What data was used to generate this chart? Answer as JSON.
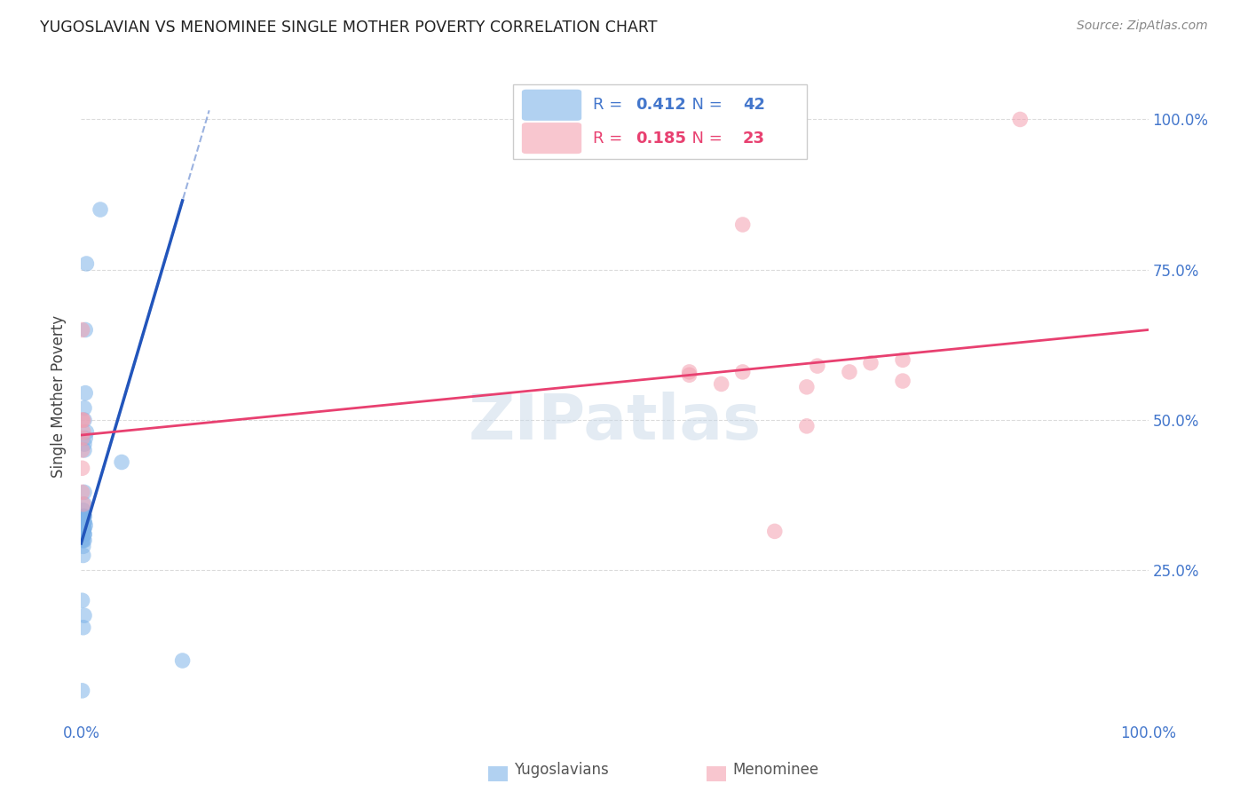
{
  "title": "YUGOSLAVIAN VS MENOMINEE SINGLE MOTHER POVERTY CORRELATION CHART",
  "source": "Source: ZipAtlas.com",
  "ylabel": "Single Mother Poverty",
  "legend_blue_r": "0.412",
  "legend_blue_n": "42",
  "legend_pink_r": "0.185",
  "legend_pink_n": "23",
  "blue_color": "#7EB3E8",
  "pink_color": "#F4A0B0",
  "blue_line_color": "#2255BB",
  "pink_line_color": "#E84070",
  "watermark_color": "#C8D8E8",
  "grid_color": "#CCCCCC",
  "tick_color": "#4477CC",
  "title_color": "#222222",
  "blue_points_x": [
    0.001,
    0.001,
    0.002,
    0.001,
    0.003,
    0.002,
    0.003,
    0.002,
    0.001,
    0.002,
    0.003,
    0.003,
    0.002,
    0.003,
    0.003,
    0.004,
    0.002,
    0.002,
    0.003,
    0.003,
    0.003,
    0.004,
    0.003,
    0.005,
    0.004,
    0.002,
    0.003,
    0.003,
    0.002,
    0.002,
    0.001,
    0.002,
    0.003,
    0.002,
    0.003,
    0.001,
    0.005,
    0.004,
    0.038,
    0.018,
    0.095,
    0.003
  ],
  "blue_points_y": [
    0.335,
    0.325,
    0.34,
    0.315,
    0.31,
    0.33,
    0.34,
    0.35,
    0.3,
    0.29,
    0.36,
    0.5,
    0.315,
    0.45,
    0.52,
    0.545,
    0.32,
    0.3,
    0.38,
    0.33,
    0.32,
    0.65,
    0.46,
    0.76,
    0.325,
    0.335,
    0.34,
    0.33,
    0.32,
    0.315,
    0.2,
    0.155,
    0.175,
    0.275,
    0.3,
    0.05,
    0.48,
    0.47,
    0.43,
    0.85,
    0.1,
    0.31
  ],
  "pink_points_x": [
    0.001,
    0.001,
    0.001,
    0.001,
    0.002,
    0.002,
    0.001,
    0.002,
    0.001,
    0.88,
    0.62,
    0.69,
    0.74,
    0.77,
    0.68,
    0.65,
    0.6,
    0.72,
    0.57,
    0.77,
    0.68,
    0.62,
    0.57
  ],
  "pink_points_y": [
    0.42,
    0.5,
    0.38,
    0.45,
    0.48,
    0.5,
    0.47,
    0.36,
    0.65,
    1.0,
    0.825,
    0.59,
    0.595,
    0.565,
    0.49,
    0.315,
    0.56,
    0.58,
    0.58,
    0.6,
    0.555,
    0.58,
    0.575
  ]
}
